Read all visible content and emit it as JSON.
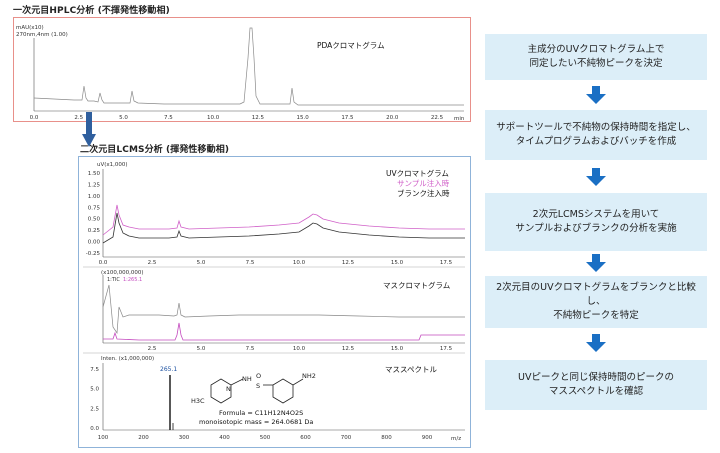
{
  "hplc": {
    "title": "一次元目HPLC分析 (不揮発性移動相)",
    "y_unit": "mAU(x10)",
    "channel": "270nm,4nm (1.00)",
    "chromatogram_label": "PDAクロマトグラム",
    "x_ticks": [
      "0.0",
      "2.5",
      "5.0",
      "7.5",
      "10.0",
      "12.5",
      "15.0",
      "17.5",
      "20.0",
      "22.5"
    ],
    "x_unit": "min"
  },
  "lcms": {
    "title": "二次元目LCMS分析 (揮発性移動相)",
    "uv": {
      "y_unit": "uV(x1,000)",
      "y_ticks": [
        "1.50",
        "1.25",
        "1.00",
        "0.75",
        "0.50",
        "0.25",
        "0.00",
        "-0.25"
      ],
      "x_ticks": [
        "0.0",
        "2.5",
        "5.0",
        "7.5",
        "10.0",
        "12.5",
        "15.0",
        "17.5"
      ],
      "label": "UVクロマトグラム",
      "sample_label": "サンプル注入時",
      "blank_label": "ブランク注入時",
      "sample_color": "#d060c8",
      "blank_color": "#333333"
    },
    "mass": {
      "y_unit": "(x100,000,000)",
      "tic_prefix": "1:TIC",
      "tic_suffix": "1:265.1",
      "label": "マスクロマトグラム",
      "x_ticks": [
        "2.5",
        "5.0",
        "7.5",
        "10.0",
        "12.5",
        "15.0",
        "17.5"
      ]
    },
    "spectrum": {
      "y_unit": "Inten. (x1,000,000)",
      "y_ticks": [
        "7.5",
        "5.0",
        "2.5",
        "0.0"
      ],
      "x_ticks": [
        "100",
        "200",
        "300",
        "400",
        "500",
        "600",
        "700",
        "800",
        "900"
      ],
      "x_unit": "m/z",
      "peak_label": "265.1",
      "label": "マススペクトル",
      "formula": "Formula = C11H12N4O2S",
      "mass": "monoisotopic mass = 264.0681 Da",
      "nh2": "NH2",
      "ch3": "H3C",
      "nh": "NH",
      "n_atom": "N",
      "s_atom": "S",
      "o_atom": "O"
    }
  },
  "flow": {
    "steps": [
      "主成分のUVクロマトグラム上で\n同定したい不純物ピークを決定",
      "サポートツールで不純物の保持時間を指定し、\nタイムプログラムおよびバッチを作成",
      "2次元LCMSシステムを用いて\nサンプルおよびブランクの分析を実施",
      "2次元目のUVクロマトグラムをブランクと比較し、\n不純物ピークを特定",
      "UVピークと同じ保持時間のピークの\nマススペクトルを確認"
    ],
    "box_color": "#dceef8",
    "arrow_color": "#1a6fc4"
  }
}
